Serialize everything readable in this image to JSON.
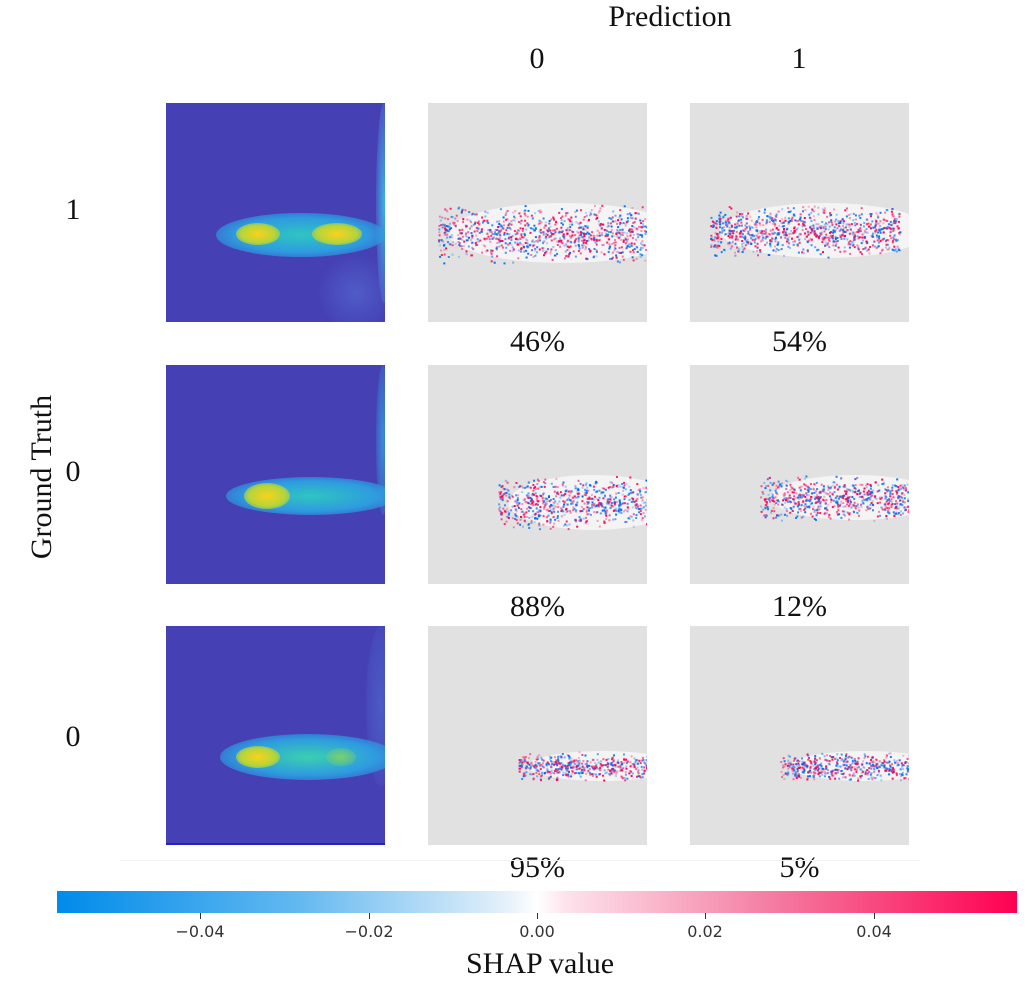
{
  "chart_data": {
    "type": "heatmap",
    "title": "Prediction",
    "column_labels": [
      "0",
      "1"
    ],
    "ylabel": "Ground Truth",
    "rows": [
      {
        "ground_truth": "1",
        "prediction_probs": [
          "46%",
          "54%"
        ]
      },
      {
        "ground_truth": "0",
        "prediction_probs": [
          "88%",
          "12%"
        ]
      },
      {
        "ground_truth": "0",
        "prediction_probs": [
          "95%",
          "5%"
        ]
      }
    ],
    "colorbar": {
      "label": "SHAP value",
      "ticks": [
        "−0.04",
        "−0.02",
        "0.00",
        "0.02",
        "0.04"
      ],
      "tick_values": [
        -0.04,
        -0.02,
        0.0,
        0.02,
        0.04
      ],
      "range": [
        -0.057,
        0.057
      ],
      "colors": {
        "negative": "#008bea",
        "zero": "#ffffff",
        "positive": "#ff0052"
      }
    }
  }
}
